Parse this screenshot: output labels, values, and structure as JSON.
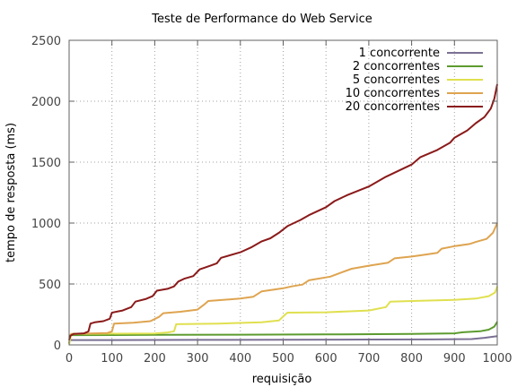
{
  "chart_data": {
    "type": "line",
    "title": "Teste de Performance do Web Service",
    "xlabel": "requisição",
    "ylabel": "tempo de resposta (ms)",
    "xlim": [
      0,
      1000
    ],
    "ylim": [
      0,
      2500
    ],
    "xticks": [
      0,
      100,
      200,
      300,
      400,
      500,
      600,
      700,
      800,
      900,
      1000
    ],
    "yticks": [
      0,
      500,
      1000,
      1500,
      2000,
      2500
    ],
    "grid": true,
    "legend_position": "top-right",
    "series": [
      {
        "name": "1 concorrente",
        "color": "#7b7094",
        "points": [
          [
            0,
            15
          ],
          [
            2,
            40
          ],
          [
            100,
            40
          ],
          [
            300,
            41
          ],
          [
            500,
            42
          ],
          [
            700,
            44
          ],
          [
            850,
            45
          ],
          [
            940,
            48
          ],
          [
            970,
            58
          ],
          [
            1000,
            72
          ]
        ]
      },
      {
        "name": "2 concorrentes",
        "color": "#5c9b2f",
        "points": [
          [
            0,
            60
          ],
          [
            3,
            80
          ],
          [
            200,
            82
          ],
          [
            400,
            84
          ],
          [
            600,
            86
          ],
          [
            800,
            90
          ],
          [
            900,
            95
          ],
          [
            920,
            104
          ],
          [
            960,
            112
          ],
          [
            980,
            125
          ],
          [
            993,
            150
          ],
          [
            1000,
            190
          ]
        ]
      },
      {
        "name": "5 concorrentes",
        "color": "#e0e050",
        "points": [
          [
            0,
            5
          ],
          [
            5,
            90
          ],
          [
            80,
            92
          ],
          [
            200,
            94
          ],
          [
            230,
            102
          ],
          [
            245,
            112
          ],
          [
            250,
            170
          ],
          [
            350,
            175
          ],
          [
            450,
            185
          ],
          [
            490,
            200
          ],
          [
            505,
            250
          ],
          [
            510,
            265
          ],
          [
            600,
            268
          ],
          [
            700,
            282
          ],
          [
            740,
            310
          ],
          [
            750,
            355
          ],
          [
            800,
            360
          ],
          [
            900,
            370
          ],
          [
            950,
            380
          ],
          [
            980,
            400
          ],
          [
            995,
            430
          ],
          [
            1000,
            480
          ]
        ]
      },
      {
        "name": "10 concorrentes",
        "color": "#dea450",
        "points": [
          [
            0,
            40
          ],
          [
            5,
            90
          ],
          [
            90,
            98
          ],
          [
            100,
            110
          ],
          [
            105,
            175
          ],
          [
            150,
            182
          ],
          [
            190,
            195
          ],
          [
            210,
            230
          ],
          [
            220,
            260
          ],
          [
            260,
            272
          ],
          [
            300,
            290
          ],
          [
            315,
            330
          ],
          [
            325,
            360
          ],
          [
            400,
            380
          ],
          [
            430,
            395
          ],
          [
            450,
            440
          ],
          [
            500,
            465
          ],
          [
            520,
            480
          ],
          [
            545,
            495
          ],
          [
            560,
            530
          ],
          [
            610,
            560
          ],
          [
            640,
            600
          ],
          [
            660,
            625
          ],
          [
            700,
            650
          ],
          [
            745,
            675
          ],
          [
            760,
            710
          ],
          [
            800,
            725
          ],
          [
            830,
            740
          ],
          [
            860,
            755
          ],
          [
            870,
            790
          ],
          [
            900,
            810
          ],
          [
            935,
            828
          ],
          [
            950,
            845
          ],
          [
            975,
            870
          ],
          [
            990,
            920
          ],
          [
            1000,
            1000
          ]
        ]
      },
      {
        "name": "20 concorrentes",
        "color": "#8b1a1a",
        "points": [
          [
            0,
            40
          ],
          [
            3,
            75
          ],
          [
            10,
            90
          ],
          [
            35,
            95
          ],
          [
            45,
            110
          ],
          [
            50,
            175
          ],
          [
            60,
            185
          ],
          [
            80,
            195
          ],
          [
            95,
            215
          ],
          [
            100,
            265
          ],
          [
            125,
            282
          ],
          [
            145,
            310
          ],
          [
            155,
            355
          ],
          [
            180,
            378
          ],
          [
            195,
            400
          ],
          [
            205,
            445
          ],
          [
            230,
            460
          ],
          [
            245,
            480
          ],
          [
            255,
            520
          ],
          [
            270,
            545
          ],
          [
            290,
            565
          ],
          [
            305,
            620
          ],
          [
            330,
            650
          ],
          [
            345,
            670
          ],
          [
            355,
            715
          ],
          [
            400,
            760
          ],
          [
            425,
            800
          ],
          [
            450,
            850
          ],
          [
            470,
            875
          ],
          [
            490,
            920
          ],
          [
            510,
            975
          ],
          [
            540,
            1025
          ],
          [
            560,
            1065
          ],
          [
            600,
            1130
          ],
          [
            620,
            1180
          ],
          [
            650,
            1230
          ],
          [
            700,
            1300
          ],
          [
            740,
            1380
          ],
          [
            800,
            1480
          ],
          [
            820,
            1540
          ],
          [
            860,
            1600
          ],
          [
            890,
            1660
          ],
          [
            900,
            1700
          ],
          [
            930,
            1760
          ],
          [
            950,
            1820
          ],
          [
            970,
            1870
          ],
          [
            985,
            1940
          ],
          [
            993,
            2020
          ],
          [
            1000,
            2140
          ]
        ]
      }
    ]
  }
}
